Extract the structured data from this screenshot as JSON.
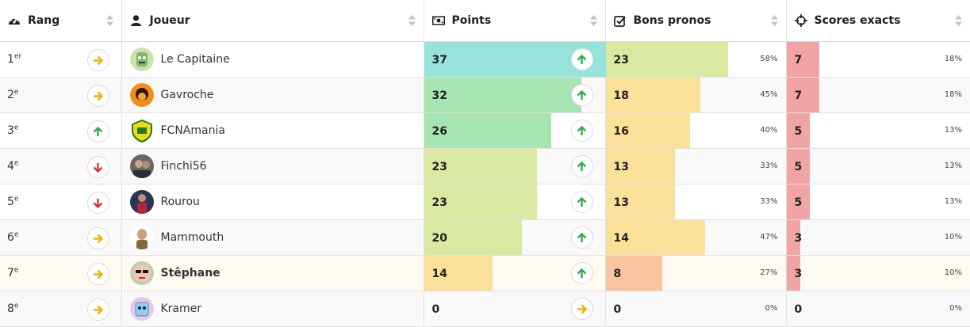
{
  "colors": {
    "bar_cyan": "#97e3dc",
    "bar_green": "#a6e4b1",
    "bar_lightgreen": "#dae9a2",
    "bar_yellow": "#f9e199",
    "bar_peach": "#f9c49f",
    "bar_red": "#f0a4a4",
    "up": "#2eae4f",
    "down": "#e03131",
    "same": "#f2b100"
  },
  "headers": {
    "rank": {
      "label": "Rang",
      "icon": "dashboard-gauge-icon"
    },
    "player": {
      "label": "Joueur",
      "icon": "user-icon"
    },
    "points": {
      "label": "Points",
      "icon": "money-bill-icon"
    },
    "bons": {
      "label": "Bons pronos",
      "icon": "checkbox-icon"
    },
    "scores": {
      "label": "Scores exacts",
      "icon": "crosshair-icon"
    }
  },
  "rows": [
    {
      "rank": "1",
      "suffix": "er",
      "rank_trend": "same",
      "player": "Le Capitaine",
      "avatar": "green-monster-avatar",
      "points": 37,
      "points_trend": "up",
      "points_color": "#97e3dc",
      "bons": 23,
      "bons_pct": "58%",
      "bons_color": "#dae9a2",
      "scores": 7,
      "scores_pct": "18%",
      "me": false
    },
    {
      "rank": "2",
      "suffix": "e",
      "rank_trend": "same",
      "player": "Gavroche",
      "avatar": "orange-face-avatar",
      "points": 32,
      "points_trend": "up",
      "points_color": "#a6e4b1",
      "bons": 18,
      "bons_pct": "45%",
      "bons_color": "#f9e199",
      "scores": 7,
      "scores_pct": "18%",
      "me": false
    },
    {
      "rank": "3",
      "suffix": "e",
      "rank_trend": "up",
      "player": "FCNAmania",
      "avatar": "fc-nantes-crest-avatar",
      "points": 26,
      "points_trend": "up",
      "points_color": "#a6e4b1",
      "bons": 16,
      "bons_pct": "40%",
      "bons_color": "#f9e199",
      "scores": 5,
      "scores_pct": "13%",
      "me": false
    },
    {
      "rank": "4",
      "suffix": "e",
      "rank_trend": "down",
      "player": "Finchi56",
      "avatar": "photo-avatar",
      "points": 23,
      "points_trend": "up",
      "points_color": "#dae9a2",
      "bons": 13,
      "bons_pct": "33%",
      "bons_color": "#f9e199",
      "scores": 5,
      "scores_pct": "13%",
      "me": false
    },
    {
      "rank": "5",
      "suffix": "e",
      "rank_trend": "down",
      "player": "Rourou",
      "avatar": "player-avatar",
      "points": 23,
      "points_trend": "up",
      "points_color": "#dae9a2",
      "bons": 13,
      "bons_pct": "33%",
      "bons_color": "#f9e199",
      "scores": 5,
      "scores_pct": "13%",
      "me": false
    },
    {
      "rank": "6",
      "suffix": "e",
      "rank_trend": "same",
      "player": "Mammouth",
      "avatar": "bald-man-avatar",
      "points": 20,
      "points_trend": "up",
      "points_color": "#dae9a2",
      "bons": 14,
      "bons_pct": "47%",
      "bons_color": "#f9e199",
      "scores": 3,
      "scores_pct": "10%",
      "me": false
    },
    {
      "rank": "7",
      "suffix": "e",
      "rank_trend": "same",
      "player": "Stêphane",
      "avatar": "sunglasses-avatar",
      "points": 14,
      "points_trend": "up",
      "points_color": "#f9e199",
      "bons": 8,
      "bons_pct": "27%",
      "bons_color": "#f9c49f",
      "scores": 3,
      "scores_pct": "10%",
      "me": true
    },
    {
      "rank": "8",
      "suffix": "e",
      "rank_trend": "same",
      "player": "Kramer",
      "avatar": "blue-robot-avatar",
      "points": 0,
      "points_trend": "same",
      "points_color": "#97e3dc",
      "bons": 0,
      "bons_pct": "0%",
      "bons_color": "#f9e199",
      "scores": 0,
      "scores_pct": "0%",
      "me": false
    }
  ],
  "scale": {
    "points_max": 37,
    "bons_ratio_max": 0.77,
    "scores_max": 7
  }
}
